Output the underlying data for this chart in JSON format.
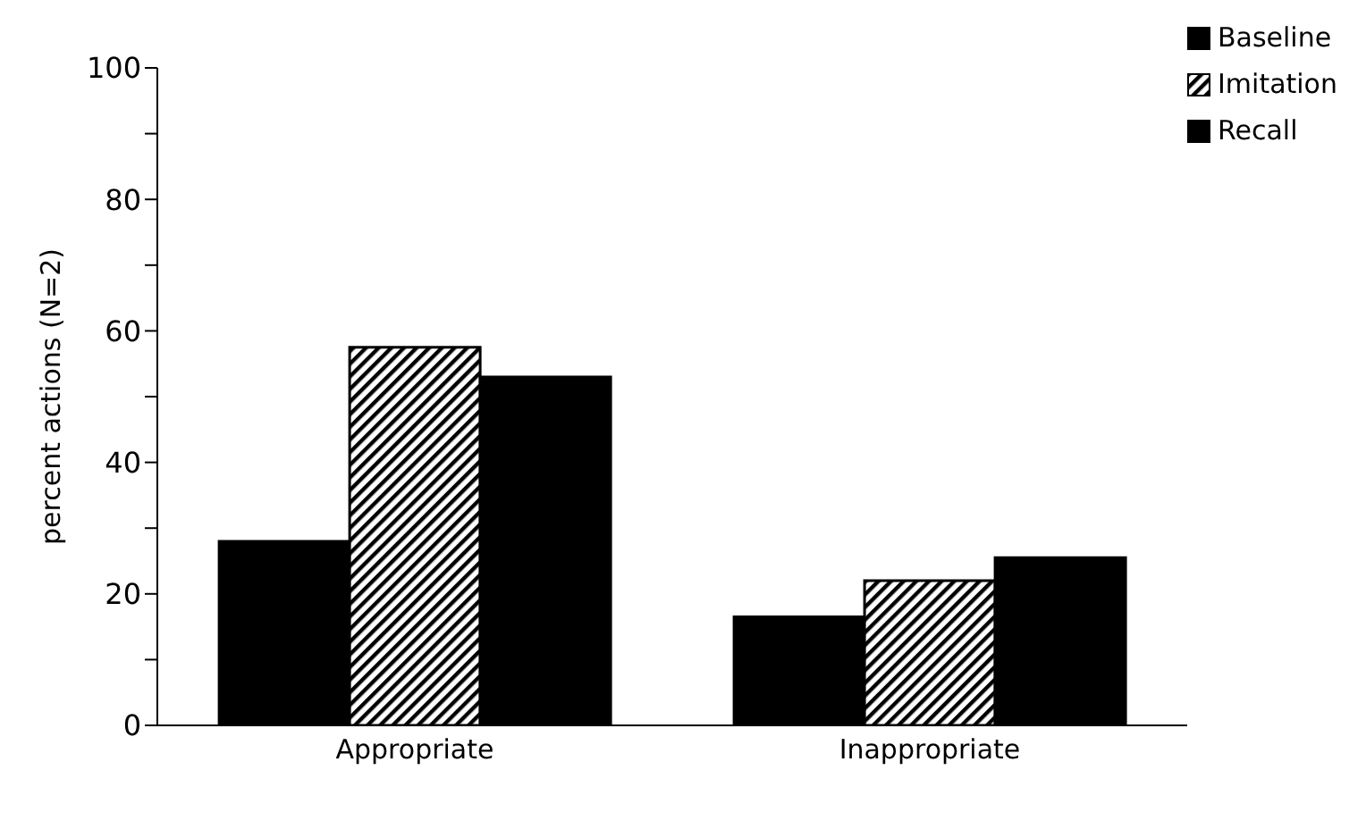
{
  "chart_data": {
    "type": "bar",
    "categories": [
      "Appropriate",
      "Inappropriate"
    ],
    "series": [
      {
        "name": "Baseline",
        "color": "#000000",
        "values": [
          28,
          16.5
        ]
      },
      {
        "name": "Imitation",
        "color": "#000000",
        "values": [
          57.5,
          22
        ]
      },
      {
        "name": "Recall",
        "color": "#000000",
        "values": [
          53,
          25.5
        ]
      }
    ],
    "ylabel": "percent actions (N=2)",
    "ylim": [
      0,
      100
    ],
    "yticks": [
      0,
      {
        "value": 10,
        "label": null
      },
      20,
      {
        "value": 30,
        "label": null
      },
      40,
      {
        "value": 50,
        "label": null
      },
      60,
      {
        "value": 70,
        "label": null
      },
      80,
      {
        "value": 90,
        "label": null
      },
      100
    ],
    "grid": false,
    "legend": "top right"
  }
}
